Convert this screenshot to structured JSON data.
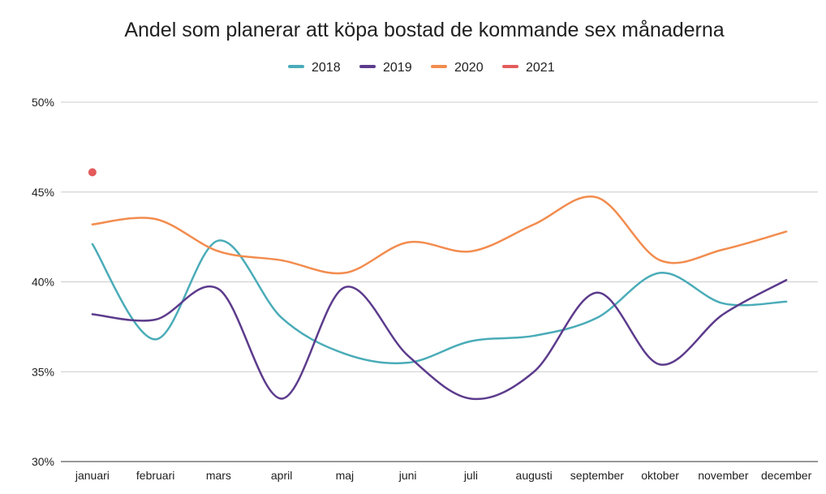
{
  "chart_data": {
    "type": "line",
    "title": "Andel som planerar att köpa bostad de kommande sex månaderna",
    "xlabel": "",
    "ylabel": "",
    "categories": [
      "januari",
      "februari",
      "mars",
      "april",
      "maj",
      "juni",
      "juli",
      "augusti",
      "september",
      "oktober",
      "november",
      "december"
    ],
    "y_ticks": [
      "30%",
      "35%",
      "40%",
      "45%",
      "50%"
    ],
    "y_tick_values": [
      30,
      35,
      40,
      45,
      50
    ],
    "ylim": [
      30,
      50
    ],
    "grid": true,
    "legend_position": "top",
    "smooth": true,
    "series": [
      {
        "name": "2018",
        "color": "#4aacb8",
        "values": [
          42.1,
          36.8,
          42.3,
          38.0,
          36.0,
          35.5,
          36.7,
          37.0,
          38.0,
          40.5,
          38.8,
          38.9
        ]
      },
      {
        "name": "2019",
        "color": "#5c3b8c",
        "values": [
          38.2,
          37.9,
          39.6,
          33.5,
          39.7,
          35.9,
          33.5,
          35.0,
          39.4,
          35.4,
          38.2,
          40.1
        ]
      },
      {
        "name": "2020",
        "color": "#f28c4e",
        "values": [
          43.2,
          43.5,
          41.7,
          41.2,
          40.5,
          42.2,
          41.7,
          43.2,
          44.7,
          41.2,
          41.8,
          42.8
        ]
      },
      {
        "name": "2021",
        "color": "#e35b5b",
        "values": [
          46.1,
          null,
          null,
          null,
          null,
          null,
          null,
          null,
          null,
          null,
          null,
          null
        ]
      }
    ]
  }
}
